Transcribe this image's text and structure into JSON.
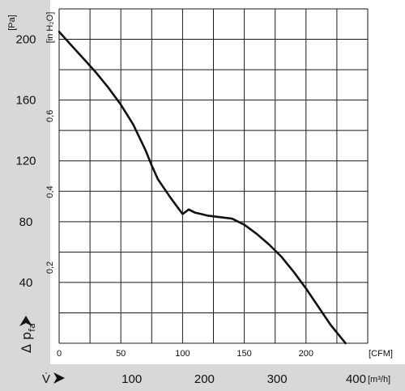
{
  "colors": {
    "left_panel": "#d8d8d8",
    "bottom_band": "#d8d8d8",
    "grid": "#1a1a1a",
    "curve": "#111111"
  },
  "chart_data": {
    "type": "line",
    "title": "",
    "series": [
      {
        "x_cfm": [
          0,
          10,
          20,
          30,
          40,
          50,
          60,
          70,
          75,
          80,
          90,
          100,
          105,
          110,
          115,
          120,
          130,
          140,
          150,
          160,
          170,
          180,
          190,
          200,
          210,
          220,
          230,
          232
        ],
        "y_pa": [
          205,
          196,
          187,
          178,
          168,
          157,
          144,
          127,
          117,
          108,
          96,
          85,
          88,
          86,
          85,
          84,
          83,
          82,
          78,
          72,
          65,
          57,
          47,
          36,
          24,
          12,
          2,
          0
        ]
      }
    ],
    "x_axis_cfm": {
      "unit": "[CFM]",
      "ticks": [
        "0",
        "50",
        "100",
        "150",
        "200"
      ],
      "range": [
        0,
        250
      ]
    },
    "x_axis_m3h": {
      "symbol": "V̇",
      "unit": "[m³/h]",
      "ticks": [
        "100",
        "200",
        "300",
        "400"
      ]
    },
    "y_axis_pa": {
      "unit": "[Pa]",
      "title": "Δ p",
      "title_sub": "fa",
      "ticks": [
        "40",
        "80",
        "120",
        "160",
        "200"
      ],
      "range": [
        0,
        220
      ]
    },
    "y_axis_inh2o": {
      "unit": "[in H₂O]",
      "ticks": [
        "0,2",
        "0,4",
        "0,6"
      ]
    },
    "grid": true
  }
}
